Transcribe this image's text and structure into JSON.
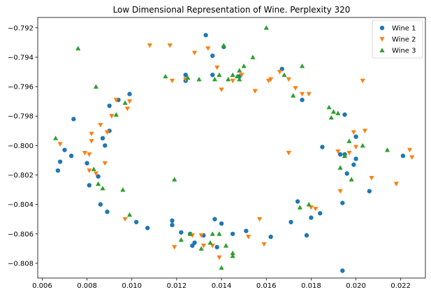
{
  "chart_data": {
    "type": "scatter",
    "title": "Low Dimensional Representation of Wine. Perplexity 320",
    "xlabel": "",
    "ylabel": "",
    "xlim": [
      0.0058,
      0.0231
    ],
    "ylim": [
      -0.809,
      -0.7913
    ],
    "x_ticks": [
      0.006,
      0.008,
      0.01,
      0.012,
      0.014,
      0.016,
      0.018,
      0.02,
      0.022
    ],
    "x_tick_labels": [
      "0.006",
      "0.008",
      "0.010",
      "0.012",
      "0.014",
      "0.016",
      "0.018",
      "0.020",
      "0.022"
    ],
    "y_ticks": [
      -0.808,
      -0.806,
      -0.804,
      -0.802,
      -0.8,
      -0.798,
      -0.796,
      -0.794,
      -0.792
    ],
    "y_tick_labels": [
      "−0.808",
      "−0.806",
      "−0.804",
      "−0.802",
      "−0.800",
      "−0.798",
      "−0.796",
      "−0.794",
      "−0.792"
    ],
    "grid": false,
    "legend_position": "top-right",
    "series": [
      {
        "name": "Wine 1",
        "marker": "circle",
        "color": "#1f77b4",
        "points": [
          [
            0.0067,
            -0.8017
          ],
          [
            0.0068,
            -0.8011
          ],
          [
            0.007,
            -0.8003
          ],
          [
            0.0073,
            -0.8007
          ],
          [
            0.0074,
            -0.7982
          ],
          [
            0.008,
            -0.8012
          ],
          [
            0.0081,
            -0.8027
          ],
          [
            0.0085,
            -0.8021
          ],
          [
            0.0086,
            -0.804
          ],
          [
            0.0087,
            -0.7995
          ],
          [
            0.0088,
            -0.8
          ],
          [
            0.0089,
            -0.8045
          ],
          [
            0.009,
            -0.799
          ],
          [
            0.009,
            -0.7973
          ],
          [
            0.0094,
            -0.7969
          ],
          [
            0.0099,
            -0.7965
          ],
          [
            0.0102,
            -0.8052
          ],
          [
            0.0107,
            -0.8056
          ],
          [
            0.0118,
            -0.8051
          ],
          [
            0.0118,
            -0.8054
          ],
          [
            0.0122,
            -0.8059
          ],
          [
            0.0124,
            -0.7956
          ],
          [
            0.0124,
            -0.7952
          ],
          [
            0.0126,
            -0.806
          ],
          [
            0.0127,
            -0.8068
          ],
          [
            0.0128,
            -0.8066
          ],
          [
            0.0132,
            -0.8061
          ],
          [
            0.0133,
            -0.7925
          ],
          [
            0.0136,
            -0.7939
          ],
          [
            0.0136,
            -0.7952
          ],
          [
            0.0137,
            -0.805
          ],
          [
            0.0138,
            -0.8069
          ],
          [
            0.014,
            -0.8053
          ],
          [
            0.0141,
            -0.7933
          ],
          [
            0.0145,
            -0.806
          ],
          [
            0.0148,
            -0.7953
          ],
          [
            0.0151,
            -0.8058
          ],
          [
            0.0162,
            -0.8062
          ],
          [
            0.0167,
            -0.7948
          ],
          [
            0.0171,
            -0.8052
          ],
          [
            0.0174,
            -0.8038
          ],
          [
            0.0176,
            -0.7969
          ],
          [
            0.0178,
            -0.8061
          ],
          [
            0.018,
            -0.8049
          ],
          [
            0.0184,
            -0.8046
          ],
          [
            0.0185,
            -0.8001
          ],
          [
            0.0193,
            -0.8006
          ],
          [
            0.0194,
            -0.8085
          ],
          [
            0.0194,
            -0.8039
          ],
          [
            0.0195,
            -0.7979
          ],
          [
            0.0195,
            -0.8006
          ],
          [
            0.0196,
            -0.8019
          ],
          [
            0.0199,
            -0.8013
          ],
          [
            0.02,
            -0.7994
          ],
          [
            0.02,
            -0.8009
          ],
          [
            0.0206,
            -0.8031
          ],
          [
            0.0221,
            -0.8007
          ]
        ]
      },
      {
        "name": "Wine 2",
        "marker": "triangle-down",
        "color": "#ff7f0e",
        "points": [
          [
            0.0068,
            -0.7999
          ],
          [
            0.0079,
            -0.8005
          ],
          [
            0.0081,
            -0.8017
          ],
          [
            0.0081,
            -0.8006
          ],
          [
            0.0082,
            -0.7992
          ],
          [
            0.0082,
            -0.7997
          ],
          [
            0.0084,
            -0.8019
          ],
          [
            0.0086,
            -0.7986
          ],
          [
            0.0088,
            -0.8012
          ],
          [
            0.0089,
            -0.7991
          ],
          [
            0.0091,
            -0.798
          ],
          [
            0.0093,
            -0.7969
          ],
          [
            0.0097,
            -0.805
          ],
          [
            0.0098,
            -0.7975
          ],
          [
            0.0099,
            -0.797
          ],
          [
            0.0108,
            -0.7932
          ],
          [
            0.0117,
            -0.7932
          ],
          [
            0.0118,
            -0.7956
          ],
          [
            0.0119,
            -0.8069
          ],
          [
            0.0124,
            -0.7955
          ],
          [
            0.0127,
            -0.8061
          ],
          [
            0.0128,
            -0.7937
          ],
          [
            0.0131,
            -0.8061
          ],
          [
            0.0132,
            -0.8068
          ],
          [
            0.0134,
            -0.7934
          ],
          [
            0.0136,
            -0.8068
          ],
          [
            0.0138,
            -0.7947
          ],
          [
            0.0139,
            -0.8076
          ],
          [
            0.014,
            -0.7962
          ],
          [
            0.0145,
            -0.7956
          ],
          [
            0.0149,
            -0.7952
          ],
          [
            0.0152,
            -0.8062
          ],
          [
            0.0155,
            -0.7963
          ],
          [
            0.0157,
            -0.805
          ],
          [
            0.0159,
            -0.8067
          ],
          [
            0.0161,
            -0.7956
          ],
          [
            0.0162,
            -0.7955
          ],
          [
            0.0166,
            -0.795
          ],
          [
            0.017,
            -0.8005
          ],
          [
            0.017,
            -0.7955
          ],
          [
            0.0173,
            -0.7961
          ],
          [
            0.0176,
            -0.7965
          ],
          [
            0.0179,
            -0.7965
          ],
          [
            0.018,
            -0.8042
          ],
          [
            0.0182,
            -0.8043
          ],
          [
            0.0192,
            -0.8004
          ],
          [
            0.0193,
            -0.8031
          ],
          [
            0.0197,
            -0.8005
          ],
          [
            0.0199,
            -0.7991
          ],
          [
            0.02,
            -0.8001
          ],
          [
            0.0203,
            -0.7956
          ],
          [
            0.0204,
            -0.799
          ],
          [
            0.0207,
            -0.8022
          ],
          [
            0.0218,
            -0.8026
          ],
          [
            0.0224,
            -0.8003
          ],
          [
            0.0225,
            -0.8008
          ]
        ]
      },
      {
        "name": "Wine 3",
        "marker": "triangle-up",
        "color": "#2ca02c",
        "points": [
          [
            0.0066,
            -0.7995
          ],
          [
            0.0076,
            -0.7934
          ],
          [
            0.0083,
            -0.8016
          ],
          [
            0.0084,
            -0.796
          ],
          [
            0.0085,
            -0.8026
          ],
          [
            0.0087,
            -0.8029
          ],
          [
            0.0093,
            -0.7979
          ],
          [
            0.0096,
            -0.803
          ],
          [
            0.0097,
            -0.7971
          ],
          [
            0.0099,
            -0.8047
          ],
          [
            0.0115,
            -0.7953
          ],
          [
            0.0119,
            -0.8023
          ],
          [
            0.0122,
            -0.8064
          ],
          [
            0.0125,
            -0.7954
          ],
          [
            0.0126,
            -0.806
          ],
          [
            0.013,
            -0.7955
          ],
          [
            0.0131,
            -0.807
          ],
          [
            0.0135,
            -0.8066
          ],
          [
            0.0136,
            -0.806
          ],
          [
            0.0137,
            -0.7955
          ],
          [
            0.0139,
            -0.806
          ],
          [
            0.0139,
            -0.7952
          ],
          [
            0.014,
            -0.8083
          ],
          [
            0.0141,
            -0.7932
          ],
          [
            0.0142,
            -0.8068
          ],
          [
            0.0143,
            -0.7955
          ],
          [
            0.0145,
            -0.7952
          ],
          [
            0.0145,
            -0.8073
          ],
          [
            0.0145,
            -0.8075
          ],
          [
            0.0147,
            -0.7953
          ],
          [
            0.0148,
            -0.7955
          ],
          [
            0.0148,
            -0.7949
          ],
          [
            0.015,
            -0.7946
          ],
          [
            0.0154,
            -0.794
          ],
          [
            0.016,
            -0.792
          ],
          [
            0.0168,
            -0.7952
          ],
          [
            0.0172,
            -0.7966
          ],
          [
            0.0175,
            -0.8042
          ],
          [
            0.0176,
            -0.7946
          ],
          [
            0.0179,
            -0.804
          ],
          [
            0.0188,
            -0.7974
          ],
          [
            0.0189,
            -0.7981
          ],
          [
            0.019,
            -0.7977
          ],
          [
            0.0192,
            -0.7978
          ],
          [
            0.0193,
            -0.8015
          ],
          [
            0.0195,
            -0.8007
          ],
          [
            0.0197,
            -0.7997
          ],
          [
            0.0198,
            -0.8023
          ],
          [
            0.0203,
            -0.8
          ],
          [
            0.0214,
            -0.8003
          ]
        ]
      }
    ]
  }
}
